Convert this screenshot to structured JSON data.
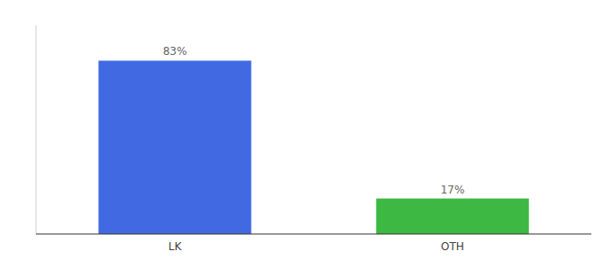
{
  "chart_data": {
    "type": "bar",
    "categories": [
      "LK",
      "OTH"
    ],
    "values": [
      83,
      17
    ],
    "colors": [
      "#4169e1",
      "#3cb843"
    ],
    "data_labels": true,
    "value_labels": [
      "83%",
      "17%"
    ],
    "ylim": [
      0,
      100
    ],
    "tick_labels": "x",
    "grid": false
  }
}
